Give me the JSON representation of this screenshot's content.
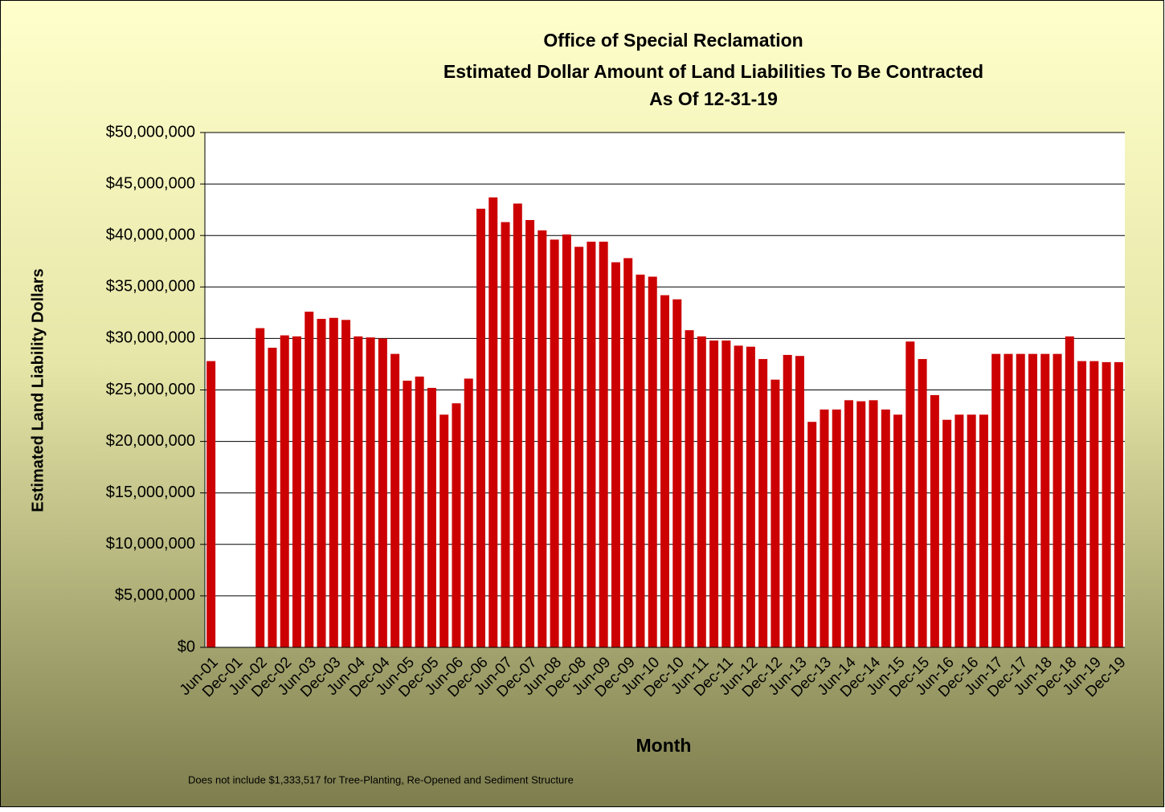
{
  "chart_data": {
    "type": "bar",
    "title": [
      "Office of Special Reclamation",
      "Estimated Dollar Amount of Land Liabilities To Be Contracted",
      "As Of 12-31-19"
    ],
    "ylabel": "Estimated Land Liability Dollars",
    "xlabel": "Month",
    "note": "Does not include $1,333,517 for Tree-Planting, Re-Opened and Sediment Structure",
    "color": "#cc0000",
    "categories": [
      "Jun-01",
      null,
      "Dec-01",
      null,
      "Jun-02",
      null,
      "Dec-02",
      null,
      "Jun-03",
      null,
      "Dec-03",
      null,
      "Jun-04",
      null,
      "Dec-04",
      null,
      "Jun-05",
      null,
      "Dec-05",
      null,
      "Jun-06",
      null,
      "Dec-06",
      null,
      "Jun-07",
      null,
      "Dec-07",
      null,
      "Jun-08",
      null,
      "Dec-08",
      null,
      "Jun-09",
      null,
      "Dec-09",
      null,
      "Jun-10",
      null,
      "Dec-10",
      null,
      "Jun-11",
      null,
      "Dec-11",
      null,
      "Jun-12",
      null,
      "Dec-12",
      null,
      "Jun-13",
      null,
      "Dec-13",
      null,
      "Jun-14",
      null,
      "Dec-14",
      null,
      "Jun-15",
      null,
      "Dec-15",
      null,
      "Jun-16",
      null,
      "Dec-16",
      null,
      "Jun-17",
      null,
      "Dec-17",
      null,
      "Jun-18",
      null,
      "Dec-18",
      null,
      "Jun-19",
      null,
      "Dec-19"
    ],
    "values": [
      27800000,
      null,
      null,
      null,
      31000000,
      29100000,
      30300000,
      30200000,
      32600000,
      31900000,
      32000000,
      31800000,
      30200000,
      30100000,
      30000000,
      28500000,
      25900000,
      26300000,
      25200000,
      22600000,
      23700000,
      26100000,
      42600000,
      43700000,
      41300000,
      43100000,
      41500000,
      40500000,
      39600000,
      40100000,
      38900000,
      39400000,
      39400000,
      37400000,
      37800000,
      36200000,
      36000000,
      34200000,
      33800000,
      30800000,
      30200000,
      29800000,
      29800000,
      29300000,
      29200000,
      28000000,
      26000000,
      28400000,
      28300000,
      21900000,
      23100000,
      23100000,
      24000000,
      23900000,
      24000000,
      23100000,
      22600000,
      29700000,
      28000000,
      24500000,
      22100000,
      22600000,
      22600000,
      22600000,
      28500000,
      28500000,
      28500000,
      28500000,
      28500000,
      28500000,
      30200000,
      27800000,
      27800000,
      27700000,
      27700000
    ],
    "ylim": [
      0,
      50000000
    ],
    "yticks": [
      {
        "value": 0,
        "label": "$0"
      },
      {
        "value": 5000000,
        "label": "$5,000,000"
      },
      {
        "value": 10000000,
        "label": "$10,000,000"
      },
      {
        "value": 15000000,
        "label": "$15,000,000"
      },
      {
        "value": 20000000,
        "label": "$20,000,000"
      },
      {
        "value": 25000000,
        "label": "$25,000,000"
      },
      {
        "value": 30000000,
        "label": "$30,000,000"
      },
      {
        "value": 35000000,
        "label": "$35,000,000"
      },
      {
        "value": 40000000,
        "label": "$40,000,000"
      },
      {
        "value": 45000000,
        "label": "$45,000,000"
      },
      {
        "value": 50000000,
        "label": "$50,000,000"
      }
    ],
    "grid": true
  }
}
